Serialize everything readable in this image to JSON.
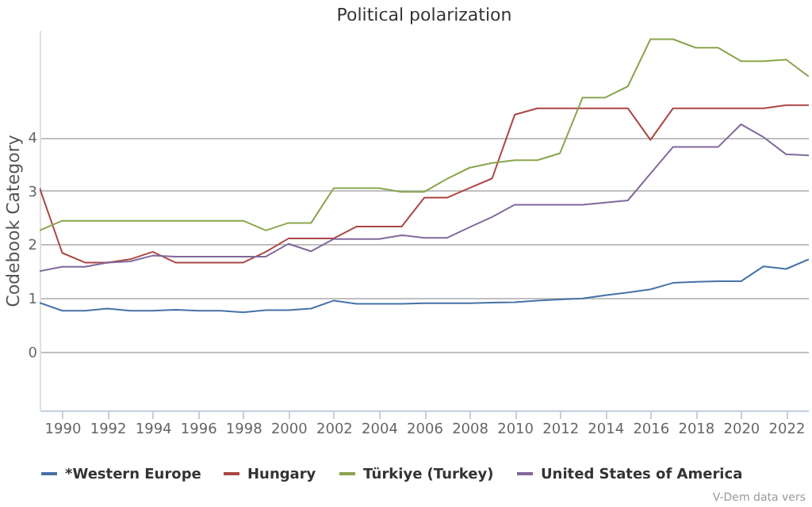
{
  "chart_data": {
    "type": "line",
    "title": "Political polarization",
    "ylabel": "Codebook Category",
    "x": [
      1989,
      1990,
      1991,
      1992,
      1993,
      1994,
      1995,
      1996,
      1997,
      1998,
      1999,
      2000,
      2001,
      2002,
      2003,
      2004,
      2005,
      2006,
      2007,
      2008,
      2009,
      2010,
      2011,
      2012,
      2013,
      2014,
      2015,
      2016,
      2017,
      2018,
      2019,
      2020,
      2021,
      2022,
      2023
    ],
    "series": [
      {
        "name": "*Western Europe",
        "color": "#4572a7",
        "values": [
          0.91,
          0.76,
          0.76,
          0.8,
          0.76,
          0.76,
          0.78,
          0.76,
          0.76,
          0.73,
          0.77,
          0.77,
          0.8,
          0.95,
          0.89,
          0.89,
          0.89,
          0.9,
          0.9,
          0.9,
          0.91,
          0.92,
          0.95,
          0.97,
          0.99,
          1.05,
          1.1,
          1.16,
          1.28,
          1.3,
          1.31,
          1.31,
          1.59,
          1.54,
          1.72
        ]
      },
      {
        "name": "Hungary",
        "color": "#aa4643",
        "values": [
          3.05,
          1.84,
          1.66,
          1.66,
          1.72,
          1.86,
          1.66,
          1.66,
          1.66,
          1.66,
          1.86,
          2.11,
          2.11,
          2.11,
          2.33,
          2.33,
          2.33,
          2.87,
          2.87,
          3.05,
          3.23,
          4.42,
          4.54,
          4.54,
          4.54,
          4.54,
          4.54,
          3.95,
          4.54,
          4.54,
          4.54,
          4.54,
          4.54,
          4.6,
          4.6
        ]
      },
      {
        "name": "Türkiye (Turkey)",
        "color": "#89a54e",
        "values": [
          2.26,
          2.44,
          2.44,
          2.44,
          2.44,
          2.44,
          2.44,
          2.44,
          2.44,
          2.44,
          2.26,
          2.4,
          2.4,
          3.05,
          3.05,
          3.05,
          2.98,
          2.98,
          3.22,
          3.43,
          3.52,
          3.57,
          3.57,
          3.7,
          4.74,
          4.74,
          4.95,
          5.83,
          5.83,
          5.67,
          5.67,
          5.42,
          5.42,
          5.45,
          5.13
        ]
      },
      {
        "name": "United States of America",
        "color": "#80699b",
        "values": [
          1.5,
          1.58,
          1.58,
          1.66,
          1.68,
          1.79,
          1.77,
          1.77,
          1.77,
          1.77,
          1.77,
          2.01,
          1.87,
          2.1,
          2.1,
          2.1,
          2.17,
          2.12,
          2.12,
          2.32,
          2.51,
          2.74,
          2.74,
          2.74,
          2.74,
          2.78,
          2.82,
          3.32,
          3.82,
          3.82,
          3.82,
          4.24,
          4.0,
          3.68,
          3.66
        ]
      }
    ],
    "xlim": [
      1989,
      2023
    ],
    "xticks": [
      1990,
      1992,
      1994,
      1996,
      1998,
      2000,
      2002,
      2004,
      2006,
      2008,
      2010,
      2012,
      2014,
      2016,
      2018,
      2020,
      2022
    ],
    "ylim": [
      -1.1,
      6.0
    ],
    "yticks": [
      0,
      1,
      2,
      3,
      4
    ],
    "grid": "y",
    "legend": "bottom",
    "marker": "none",
    "line_style": "solid",
    "annotations": [
      "V-Dem data vers"
    ]
  }
}
